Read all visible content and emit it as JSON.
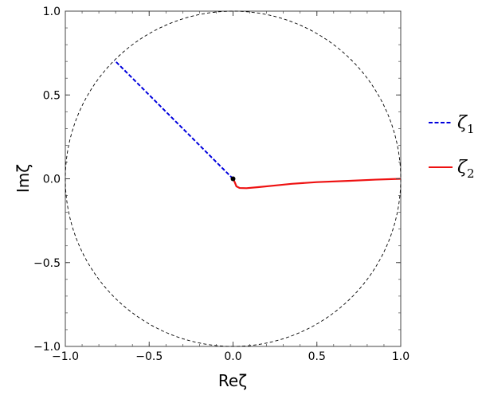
{
  "chart_data": {
    "type": "line",
    "xlabel": "Reζ",
    "ylabel": "Imζ",
    "xlim": [
      -1.0,
      1.0
    ],
    "ylim": [
      -1.0,
      1.0
    ],
    "x_ticks": [
      -1.0,
      -0.5,
      0.0,
      0.5,
      1.0
    ],
    "y_ticks": [
      -1.0,
      -0.5,
      0.0,
      0.5,
      1.0
    ],
    "x_tick_labels": [
      "−1.0",
      "−0.5",
      "0.0",
      "0.5",
      "1.0"
    ],
    "y_tick_labels": [
      "−1.0",
      "−0.5",
      "0.0",
      "0.5",
      "1.0"
    ],
    "grid": false,
    "legend_position": "right",
    "reference_curves": [
      {
        "kind": "circle",
        "center": [
          0,
          0
        ],
        "radius": 1.0,
        "style": "dashed",
        "color": "#000000"
      }
    ],
    "series": [
      {
        "name": "ζ1",
        "label_symbol": "ζ",
        "label_subscript": "1",
        "style": "dashed",
        "color": "#0000dd",
        "points": [
          [
            0.0,
            0.0
          ],
          [
            -0.707,
            0.707
          ]
        ]
      },
      {
        "name": "ζ2",
        "label_symbol": "ζ",
        "label_subscript": "2",
        "style": "solid",
        "color": "#ee1111",
        "points": [
          [
            0.0,
            0.0
          ],
          [
            0.01,
            -0.02
          ],
          [
            0.02,
            -0.045
          ],
          [
            0.04,
            -0.055
          ],
          [
            0.08,
            -0.056
          ],
          [
            0.15,
            -0.05
          ],
          [
            0.25,
            -0.04
          ],
          [
            0.35,
            -0.03
          ],
          [
            0.5,
            -0.02
          ],
          [
            0.7,
            -0.012
          ],
          [
            0.85,
            -0.005
          ],
          [
            1.0,
            0.0
          ]
        ]
      }
    ],
    "markers": [
      {
        "x": 0.0,
        "y": 0.0,
        "color": "#000000"
      }
    ]
  }
}
